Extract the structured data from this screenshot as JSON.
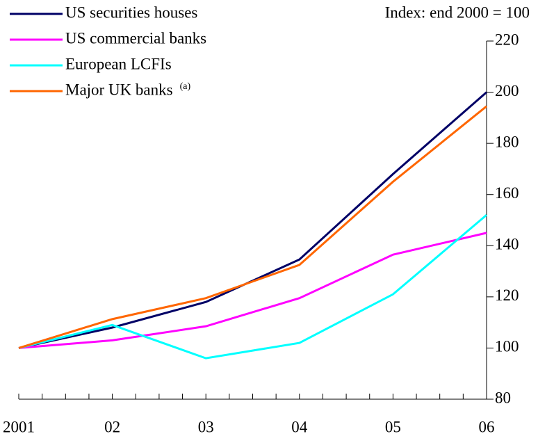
{
  "chart_data": {
    "type": "line",
    "annotation": "Index: end 2000 = 100",
    "categories": [
      "2001",
      "02",
      "03",
      "04",
      "05",
      "06"
    ],
    "series": [
      {
        "name": "US securities houses",
        "color": "#000066",
        "values": [
          100,
          108,
          118,
          134.6,
          168,
          200
        ]
      },
      {
        "name": "US commercial banks",
        "color": "#ff00ff",
        "values": [
          100,
          103,
          108.5,
          119.5,
          136.5,
          145
        ]
      },
      {
        "name": "European LCFIs",
        "color": "#00ffff",
        "values": [
          100,
          109,
          96,
          102,
          121,
          152
        ]
      },
      {
        "name": "Major UK banks",
        "note": "(a)",
        "color": "#ff6600",
        "values": [
          100,
          111.3,
          119.5,
          132.5,
          165,
          194.5
        ]
      }
    ],
    "ylim": [
      80,
      220
    ],
    "yticks": [
      80,
      100,
      120,
      140,
      160,
      180,
      200,
      220
    ],
    "legend": "top-left"
  }
}
